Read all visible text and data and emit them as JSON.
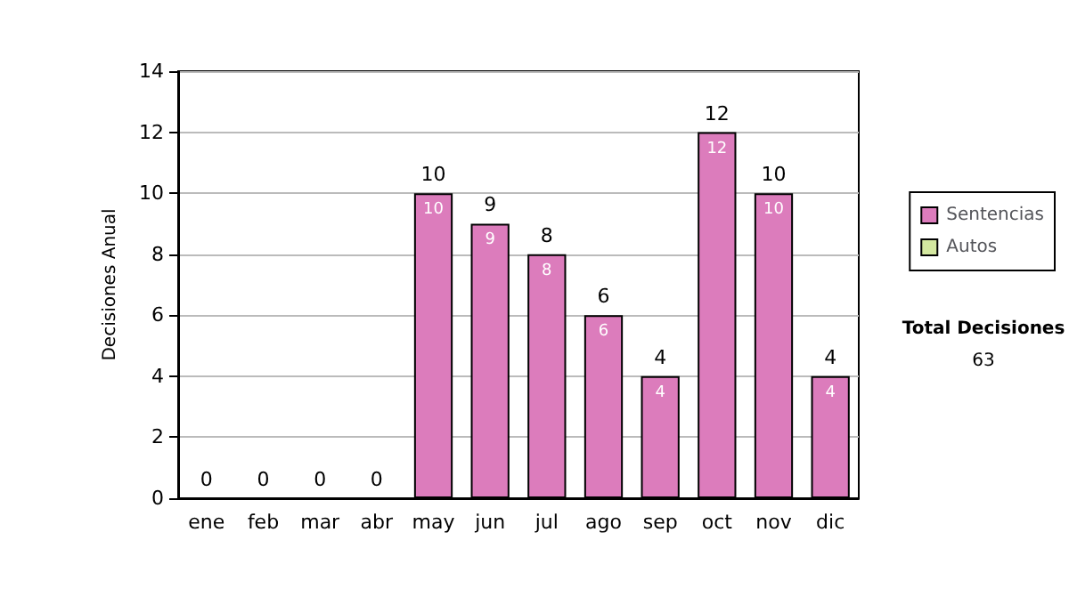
{
  "chart_data": {
    "type": "bar",
    "stacked": true,
    "ylabel": "Decisiones Anual",
    "categories": [
      "ene",
      "feb",
      "mar",
      "abr",
      "may",
      "jun",
      "jul",
      "ago",
      "sep",
      "oct",
      "nov",
      "dic"
    ],
    "series": [
      {
        "name": "Sentencias",
        "color": "#dc7cbc",
        "values": [
          0,
          0,
          0,
          0,
          10,
          9,
          8,
          6,
          4,
          12,
          10,
          4
        ],
        "value_labels": [
          null,
          null,
          null,
          null,
          "10",
          "9",
          "8",
          "6",
          "4",
          "12",
          "10",
          "4"
        ]
      },
      {
        "name": "Autos",
        "color": "#d4e8a0",
        "values": [
          0,
          0,
          0,
          0,
          0,
          0,
          0,
          0,
          0,
          0,
          0,
          0
        ]
      }
    ],
    "totals": [
      "0",
      "0",
      "0",
      "0",
      "10",
      "9",
      "8",
      "6",
      "4",
      "12",
      "10",
      "4"
    ],
    "ylim": [
      0,
      14
    ],
    "yticks": [
      0,
      2,
      4,
      6,
      8,
      10,
      12,
      14
    ],
    "grid": "y",
    "legend": "right",
    "annotations": [
      "Total Decisiones",
      "63"
    ]
  }
}
